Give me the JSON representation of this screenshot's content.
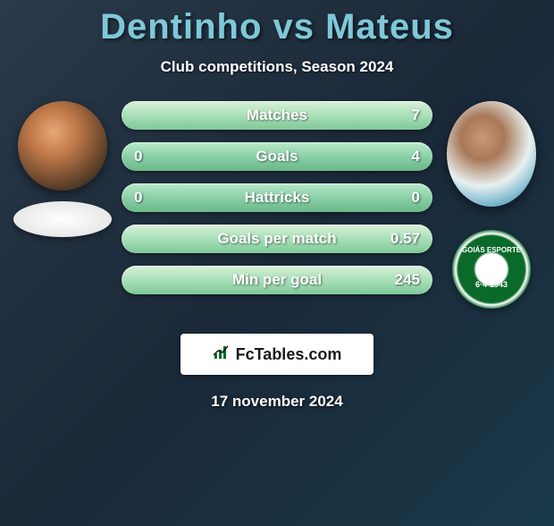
{
  "title": "Dentinho vs Mateus",
  "subtitle": "Club competitions, Season 2024",
  "date_stamp": "17 november 2024",
  "branding": {
    "icon": "📊",
    "text": "FcTables.com"
  },
  "player1": {
    "name": "Dentinho",
    "club_badge_top": "GOIÁS ESPORTE",
    "club_badge_date": ""
  },
  "player2": {
    "name": "Mateus",
    "club_badge_top": "GOIÁS ESPORTE",
    "club_badge_date": "6·4·1943"
  },
  "stats": [
    {
      "label": "Matches",
      "p1": "",
      "p2": "7",
      "highlight": true
    },
    {
      "label": "Goals",
      "p1": "0",
      "p2": "4",
      "highlight": false
    },
    {
      "label": "Hattricks",
      "p1": "0",
      "p2": "0",
      "highlight": false
    },
    {
      "label": "Goals per match",
      "p1": "",
      "p2": "0.57",
      "highlight": true
    },
    {
      "label": "Min per goal",
      "p1": "",
      "p2": "245",
      "highlight": true
    }
  ],
  "colors": {
    "title": "#7ec8d8",
    "bar_base": "#8ad0a8",
    "bar_highlight": "#a8e0b8",
    "club_green": "#0a6a2a",
    "text": "#ffffff",
    "bg_dark": "#1a2838"
  }
}
